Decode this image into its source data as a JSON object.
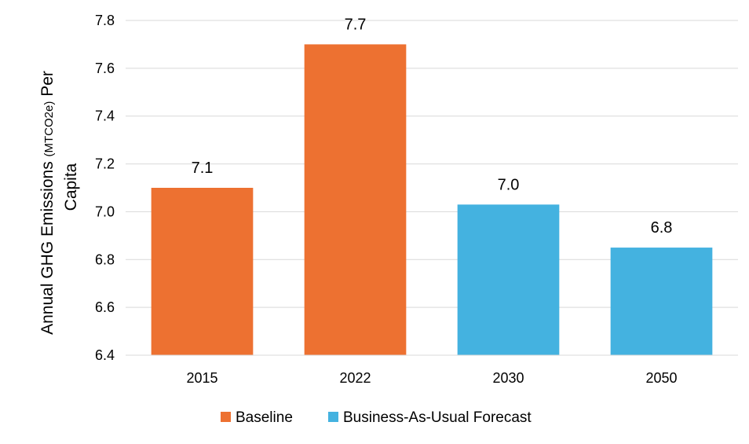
{
  "chart_data": {
    "type": "bar",
    "title": "",
    "xlabel": "",
    "ylabel": {
      "line1_prefix": "Annual GHG Emissions ",
      "line1_unit": "(MTCO2e)",
      "line1_suffix": " Per",
      "line2": "Capita"
    },
    "ylim": [
      6.4,
      7.8
    ],
    "yticks": [
      6.4,
      6.6,
      6.8,
      7.0,
      7.2,
      7.4,
      7.6,
      7.8
    ],
    "ytick_labels": [
      "6.4",
      "6.6",
      "6.8",
      "7.0",
      "7.2",
      "7.4",
      "7.6",
      "7.8"
    ],
    "grid": true,
    "categories": [
      "2015",
      "2022",
      "2030",
      "2050"
    ],
    "values": [
      7.1,
      7.7,
      7.03,
      6.85
    ],
    "data_labels": [
      "7.1",
      "7.7",
      "7.0",
      "6.8"
    ],
    "series_of_bar": [
      0,
      0,
      1,
      1
    ],
    "series": [
      {
        "name": "Baseline",
        "color": "#ED7131"
      },
      {
        "name": "Business-As-Usual Forecast",
        "color": "#44B2E0"
      }
    ],
    "legend_position": "bottom"
  }
}
